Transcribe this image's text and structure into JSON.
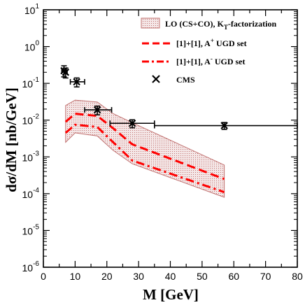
{
  "chart_data": {
    "type": "line",
    "xlabel": "M [GeV]",
    "ylabel": "dσ/dM [nb/GeV]",
    "xlim": [
      0,
      80
    ],
    "ylim_log10": [
      -6,
      1
    ],
    "log_y": true,
    "x_ticks": [
      0,
      10,
      20,
      30,
      40,
      50,
      60,
      70,
      80
    ],
    "y_ticks": [
      {
        "exp": -6,
        "base": "10",
        "power": "-6"
      },
      {
        "exp": -5,
        "base": "10",
        "power": "-5"
      },
      {
        "exp": -4,
        "base": "10",
        "power": "-4"
      },
      {
        "exp": -3,
        "base": "10",
        "power": "-3"
      },
      {
        "exp": -2,
        "base": "10",
        "power": "-2"
      },
      {
        "exp": -1,
        "base": "10",
        "power": "-1"
      },
      {
        "exp": 0,
        "base": "10",
        "power": "0"
      },
      {
        "exp": 1,
        "base": "10",
        "power": "1"
      }
    ],
    "legend_position": "top-right",
    "band": {
      "name": "LO (CS+CO), K_T-factorization",
      "label_main": "LO (CS+CO), K",
      "label_sub": "T",
      "label_tail": "-factorization",
      "color": "#c0706f",
      "x": [
        7,
        10,
        17,
        22,
        28,
        57
      ],
      "upper": [
        0.025,
        0.035,
        0.031,
        0.015,
        0.0085,
        0.0006
      ],
      "lower": [
        0.0025,
        0.0045,
        0.0037,
        0.0015,
        0.00065,
        8e-05
      ]
    },
    "series": [
      {
        "name": "[1]+[1], A+ UGD set",
        "label_main": "[1]+[1], A",
        "label_sup": "+",
        "label_tail": " UGD set",
        "style": "dashed",
        "color": "#ff0000",
        "x": [
          7,
          10,
          17,
          22,
          28,
          57
        ],
        "y": [
          0.009,
          0.015,
          0.013,
          0.006,
          0.0022,
          0.00025
        ]
      },
      {
        "name": "[1]+[1], A- UGD set",
        "label_main": "[1]+[1], A",
        "label_sup": "-",
        "label_tail": " UGD set",
        "style": "dashdot",
        "color": "#ff0000",
        "x": [
          7,
          10,
          17,
          22,
          28,
          57
        ],
        "y": [
          0.0045,
          0.0075,
          0.0065,
          0.0025,
          0.0008,
          0.00011
        ]
      }
    ],
    "cms": {
      "name": "CMS",
      "color": "#000000",
      "points": [
        {
          "x": 6.5,
          "y": 0.22,
          "xerr_lo": 0.7,
          "xerr_hi": 0.7,
          "yerr_lo": 0.07,
          "yerr_hi": 0.08
        },
        {
          "x": 7.0,
          "y": 0.2,
          "xerr_lo": 0.5,
          "xerr_hi": 0.5,
          "yerr_lo": 0.06,
          "yerr_hi": 0.06
        },
        {
          "x": 10.5,
          "y": 0.11,
          "xerr_lo": 2.0,
          "xerr_hi": 2.5,
          "yerr_lo": 0.03,
          "yerr_hi": 0.03
        },
        {
          "x": 17.0,
          "y": 0.019,
          "xerr_lo": 4.0,
          "xerr_hi": 4.5,
          "yerr_lo": 0.005,
          "yerr_hi": 0.005
        },
        {
          "x": 28.0,
          "y": 0.0082,
          "xerr_lo": 7.0,
          "xerr_hi": 7.0,
          "yerr_lo": 0.002,
          "yerr_hi": 0.002
        },
        {
          "x": 57.0,
          "y": 0.0071,
          "xerr_lo": 22.0,
          "xerr_hi": 23.0,
          "yerr_lo": 0.0015,
          "yerr_hi": 0.0015
        }
      ]
    }
  }
}
